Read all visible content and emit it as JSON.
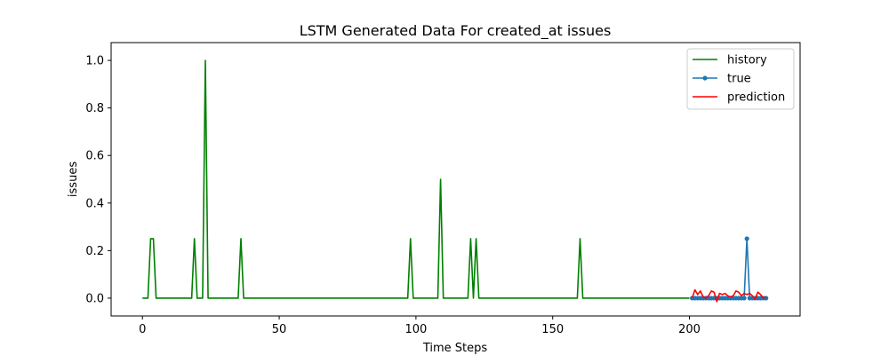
{
  "chart_data": {
    "type": "line",
    "title": "LSTM Generated Data For created_at issues",
    "xlabel": "Time Steps",
    "ylabel": "issues",
    "xlim": [
      -11.45,
      240.45
    ],
    "ylim": [
      -0.075,
      1.075
    ],
    "xticks": [
      0,
      50,
      100,
      150,
      200
    ],
    "yticks": [
      0.0,
      0.2,
      0.4,
      0.6,
      0.8,
      1.0
    ],
    "xtick_labels": [
      "0",
      "50",
      "100",
      "150",
      "200"
    ],
    "ytick_labels": [
      "0.0",
      "0.2",
      "0.4",
      "0.6",
      "0.8",
      "1.0"
    ],
    "grid": false,
    "legend_position": "top-right",
    "series": [
      {
        "name": "history",
        "color": "#008000",
        "marker": "none",
        "points": [
          [
            0,
            0
          ],
          [
            2,
            0
          ],
          [
            3,
            0.25
          ],
          [
            4,
            0.25
          ],
          [
            5,
            0
          ],
          [
            18,
            0
          ],
          [
            19,
            0.25
          ],
          [
            20,
            0
          ],
          [
            22,
            0
          ],
          [
            23,
            1.0
          ],
          [
            24,
            0
          ],
          [
            35,
            0
          ],
          [
            36,
            0.25
          ],
          [
            37,
            0
          ],
          [
            97,
            0
          ],
          [
            98,
            0.25
          ],
          [
            99,
            0
          ],
          [
            108,
            0
          ],
          [
            109,
            0.5
          ],
          [
            110,
            0
          ],
          [
            119,
            0
          ],
          [
            120,
            0.25
          ],
          [
            121,
            0
          ],
          [
            122,
            0.25
          ],
          [
            123,
            0
          ],
          [
            159,
            0
          ],
          [
            160,
            0.25
          ],
          [
            161,
            0
          ],
          [
            200,
            0
          ]
        ]
      },
      {
        "name": "true",
        "color": "#1f77b4",
        "marker": "circle",
        "points": [
          [
            201,
            0
          ],
          [
            202,
            0
          ],
          [
            203,
            0
          ],
          [
            204,
            0
          ],
          [
            205,
            0
          ],
          [
            206,
            0
          ],
          [
            207,
            0
          ],
          [
            208,
            0
          ],
          [
            209,
            0
          ],
          [
            210,
            0
          ],
          [
            211,
            0
          ],
          [
            212,
            0
          ],
          [
            213,
            0
          ],
          [
            214,
            0
          ],
          [
            215,
            0
          ],
          [
            216,
            0
          ],
          [
            217,
            0
          ],
          [
            218,
            0
          ],
          [
            219,
            0
          ],
          [
            220,
            0
          ],
          [
            221,
            0.25
          ],
          [
            222,
            0
          ],
          [
            223,
            0
          ],
          [
            224,
            0
          ],
          [
            225,
            0
          ],
          [
            226,
            0
          ],
          [
            227,
            0
          ],
          [
            228,
            0
          ]
        ]
      },
      {
        "name": "prediction",
        "color": "#ff0000",
        "marker": "none",
        "points": [
          [
            201,
            0
          ],
          [
            202,
            0.035
          ],
          [
            203,
            0.015
          ],
          [
            204,
            0.03
          ],
          [
            205,
            0.005
          ],
          [
            206,
            0.0
          ],
          [
            207,
            0.01
          ],
          [
            208,
            0.03
          ],
          [
            209,
            0.025
          ],
          [
            210,
            -0.015
          ],
          [
            211,
            0.02
          ],
          [
            212,
            0.015
          ],
          [
            213,
            0.02
          ],
          [
            214,
            0.01
          ],
          [
            215,
            0.005
          ],
          [
            216,
            0.01
          ],
          [
            217,
            0.03
          ],
          [
            218,
            0.025
          ],
          [
            219,
            0.01
          ],
          [
            220,
            0.02
          ],
          [
            221,
            0.015
          ],
          [
            222,
            0.02
          ],
          [
            223,
            0.01
          ],
          [
            224,
            -0.005
          ],
          [
            225,
            0.025
          ],
          [
            226,
            0.015
          ],
          [
            227,
            0.0
          ],
          [
            228,
            0.005
          ]
        ]
      }
    ]
  }
}
